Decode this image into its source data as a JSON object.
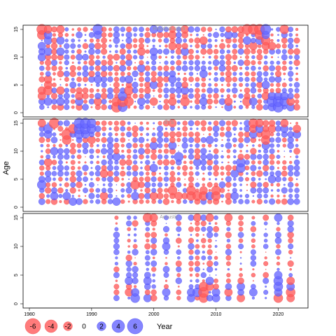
{
  "chart_data": {
    "type": "scatter",
    "subtype": "bubble-residuals",
    "ylabel": "Age",
    "xlabel": "Year",
    "xlim": [
      1980,
      2024
    ],
    "ylim": [
      0,
      15
    ],
    "x_ticks": [
      1980,
      1990,
      2000,
      2010,
      2020
    ],
    "y_ticks": [
      0,
      5,
      10,
      15
    ],
    "colors": {
      "positive": "#6666ff",
      "negative": "#ff5a5a"
    },
    "panels": [
      {
        "title": "Residual catch",
        "year_range": [
          1982,
          2023
        ],
        "points": [
          {
            "x": 1982,
            "y": 15,
            "v": -5
          },
          {
            "x": 1982,
            "y": 14,
            "v": -4
          },
          {
            "x": 1982,
            "y": 12,
            "v": 3
          },
          {
            "x": 1982,
            "y": 11,
            "v": 2
          },
          {
            "x": 1982,
            "y": 10,
            "v": 3
          },
          {
            "x": 1982,
            "y": 4,
            "v": -3
          },
          {
            "x": 1982,
            "y": 3,
            "v": -3
          },
          {
            "x": 1982,
            "y": 2,
            "v": 2
          },
          {
            "x": 1983,
            "y": 15,
            "v": -3
          },
          {
            "x": 1983,
            "y": 14,
            "v": 3
          },
          {
            "x": 1983,
            "y": 13,
            "v": 3
          },
          {
            "x": 1983,
            "y": 11,
            "v": 3
          },
          {
            "x": 1983,
            "y": 6,
            "v": -3
          },
          {
            "x": 1983,
            "y": 5,
            "v": -3
          },
          {
            "x": 1983,
            "y": 4,
            "v": -4
          },
          {
            "x": 1983,
            "y": 2,
            "v": 3
          },
          {
            "x": 1985,
            "y": 15,
            "v": -3
          },
          {
            "x": 1985,
            "y": 13,
            "v": 3
          },
          {
            "x": 1985,
            "y": 11,
            "v": 3
          },
          {
            "x": 1985,
            "y": 7,
            "v": -2
          },
          {
            "x": 1985,
            "y": 4,
            "v": -3
          },
          {
            "x": 1985,
            "y": 2,
            "v": 3
          },
          {
            "x": 1985,
            "y": 1,
            "v": -2
          },
          {
            "x": 1988,
            "y": 14,
            "v": 2
          },
          {
            "x": 1988,
            "y": 10,
            "v": 2
          },
          {
            "x": 1988,
            "y": 3,
            "v": -3
          },
          {
            "x": 1988,
            "y": 2,
            "v": 3
          },
          {
            "x": 1988,
            "y": 1,
            "v": -2
          },
          {
            "x": 1991,
            "y": 15,
            "v": 5
          },
          {
            "x": 1991,
            "y": 14,
            "v": 3
          },
          {
            "x": 1991,
            "y": 12,
            "v": -2
          },
          {
            "x": 1991,
            "y": 6,
            "v": 3
          },
          {
            "x": 1991,
            "y": 2,
            "v": -3
          },
          {
            "x": 1994,
            "y": 13,
            "v": 2
          },
          {
            "x": 1994,
            "y": 10,
            "v": -2
          },
          {
            "x": 1994,
            "y": 2,
            "v": -4
          },
          {
            "x": 1994,
            "y": 1,
            "v": -5
          },
          {
            "x": 1995,
            "y": 3,
            "v": 4
          },
          {
            "x": 1995,
            "y": 2,
            "v": -5
          },
          {
            "x": 1995,
            "y": 1,
            "v": 4
          },
          {
            "x": 1996,
            "y": 6,
            "v": 3
          },
          {
            "x": 1996,
            "y": 4,
            "v": -4
          },
          {
            "x": 1996,
            "y": 2,
            "v": -4
          },
          {
            "x": 1998,
            "y": 11,
            "v": -3
          },
          {
            "x": 1998,
            "y": 8,
            "v": 3
          },
          {
            "x": 1998,
            "y": 2,
            "v": 3
          },
          {
            "x": 2000,
            "y": 15,
            "v": 3
          },
          {
            "x": 2000,
            "y": 11,
            "v": 3
          },
          {
            "x": 2000,
            "y": 5,
            "v": 3
          },
          {
            "x": 2000,
            "y": 2,
            "v": -3
          },
          {
            "x": 2003,
            "y": 14,
            "v": -3
          },
          {
            "x": 2003,
            "y": 12,
            "v": -3
          },
          {
            "x": 2003,
            "y": 6,
            "v": 3
          },
          {
            "x": 2003,
            "y": 2,
            "v": -3
          },
          {
            "x": 2005,
            "y": 15,
            "v": -3
          },
          {
            "x": 2005,
            "y": 11,
            "v": 3
          },
          {
            "x": 2005,
            "y": 4,
            "v": 3
          },
          {
            "x": 2005,
            "y": 2,
            "v": -4
          },
          {
            "x": 2008,
            "y": 13,
            "v": -3
          },
          {
            "x": 2008,
            "y": 7,
            "v": 3
          },
          {
            "x": 2008,
            "y": 2,
            "v": 3
          },
          {
            "x": 2012,
            "y": 14,
            "v": 3
          },
          {
            "x": 2012,
            "y": 2,
            "v": -3
          },
          {
            "x": 2012,
            "y": 1,
            "v": 3
          },
          {
            "x": 2015,
            "y": 15,
            "v": -5
          },
          {
            "x": 2015,
            "y": 13,
            "v": 3
          },
          {
            "x": 2015,
            "y": 2,
            "v": -4
          },
          {
            "x": 2016,
            "y": 15,
            "v": -5
          },
          {
            "x": 2016,
            "y": 12,
            "v": -3
          },
          {
            "x": 2016,
            "y": 2,
            "v": 3
          },
          {
            "x": 2017,
            "y": 15,
            "v": -5
          },
          {
            "x": 2017,
            "y": 14,
            "v": -4
          },
          {
            "x": 2017,
            "y": 13,
            "v": 3
          },
          {
            "x": 2018,
            "y": 15,
            "v": 5
          },
          {
            "x": 2018,
            "y": 14,
            "v": 3
          },
          {
            "x": 2018,
            "y": 13,
            "v": -4
          },
          {
            "x": 2018,
            "y": 12,
            "v": -3
          },
          {
            "x": 2018,
            "y": 5,
            "v": 3
          },
          {
            "x": 2018,
            "y": 3,
            "v": -3
          },
          {
            "x": 2019,
            "y": 12,
            "v": -3
          },
          {
            "x": 2019,
            "y": 3,
            "v": 3
          },
          {
            "x": 2019,
            "y": 2,
            "v": 5
          },
          {
            "x": 2019,
            "y": 1,
            "v": 3
          },
          {
            "x": 2020,
            "y": 3,
            "v": 3
          },
          {
            "x": 2020,
            "y": 2,
            "v": 5
          },
          {
            "x": 2020,
            "y": 1,
            "v": 5
          },
          {
            "x": 2021,
            "y": 15,
            "v": -4
          },
          {
            "x": 2021,
            "y": 3,
            "v": 3
          },
          {
            "x": 2021,
            "y": 2,
            "v": 4
          },
          {
            "x": 2022,
            "y": 2,
            "v": -3
          },
          {
            "x": 2022,
            "y": 1,
            "v": 3
          }
        ]
      },
      {
        "title": "BTS",
        "year_range": [
          1982,
          2023
        ],
        "points": [
          {
            "x": 1982,
            "y": 15,
            "v": -3
          },
          {
            "x": 1982,
            "y": 4,
            "v": 4
          },
          {
            "x": 1982,
            "y": 1,
            "v": 2
          },
          {
            "x": 1983,
            "y": 14,
            "v": 4
          },
          {
            "x": 1983,
            "y": 13,
            "v": 3
          },
          {
            "x": 1983,
            "y": 8,
            "v": -3
          },
          {
            "x": 1984,
            "y": 15,
            "v": -5
          },
          {
            "x": 1984,
            "y": 10,
            "v": 3
          },
          {
            "x": 1984,
            "y": 2,
            "v": 3
          },
          {
            "x": 1986,
            "y": 13,
            "v": -5
          },
          {
            "x": 1986,
            "y": 12,
            "v": -4
          },
          {
            "x": 1986,
            "y": 2,
            "v": 3
          },
          {
            "x": 1987,
            "y": 14,
            "v": -4
          },
          {
            "x": 1987,
            "y": 1,
            "v": 3
          },
          {
            "x": 1988,
            "y": 15,
            "v": 5
          },
          {
            "x": 1988,
            "y": 14,
            "v": 5
          },
          {
            "x": 1988,
            "y": 13,
            "v": 4
          },
          {
            "x": 1989,
            "y": 15,
            "v": 5
          },
          {
            "x": 1989,
            "y": 14,
            "v": 5
          },
          {
            "x": 1989,
            "y": 13,
            "v": 3
          },
          {
            "x": 1990,
            "y": 15,
            "v": 4
          },
          {
            "x": 1990,
            "y": 14,
            "v": 4
          },
          {
            "x": 1990,
            "y": 12,
            "v": -3
          },
          {
            "x": 1992,
            "y": 6,
            "v": -3
          },
          {
            "x": 1992,
            "y": 2,
            "v": -3
          },
          {
            "x": 1994,
            "y": 9,
            "v": 3
          },
          {
            "x": 1994,
            "y": 1,
            "v": 3
          },
          {
            "x": 1997,
            "y": 4,
            "v": -4
          },
          {
            "x": 1997,
            "y": 2,
            "v": 3
          },
          {
            "x": 2000,
            "y": 11,
            "v": 3
          },
          {
            "x": 2000,
            "y": 7,
            "v": 3
          },
          {
            "x": 2000,
            "y": 2,
            "v": -3
          },
          {
            "x": 2003,
            "y": 15,
            "v": -3
          },
          {
            "x": 2003,
            "y": 11,
            "v": 3
          },
          {
            "x": 2003,
            "y": 3,
            "v": -4
          },
          {
            "x": 2004,
            "y": 9,
            "v": 4
          },
          {
            "x": 2004,
            "y": 2,
            "v": -3
          },
          {
            "x": 2006,
            "y": 3,
            "v": -4
          },
          {
            "x": 2006,
            "y": 2,
            "v": -4
          },
          {
            "x": 2007,
            "y": 2,
            "v": -4
          },
          {
            "x": 2007,
            "y": 8,
            "v": 3
          },
          {
            "x": 2008,
            "y": 3,
            "v": -3
          },
          {
            "x": 2008,
            "y": 2,
            "v": -4
          },
          {
            "x": 2009,
            "y": 2,
            "v": 3
          },
          {
            "x": 2009,
            "y": 12,
            "v": 3
          },
          {
            "x": 2010,
            "y": 3,
            "v": -4
          },
          {
            "x": 2010,
            "y": 2,
            "v": -4
          },
          {
            "x": 2013,
            "y": 6,
            "v": 3
          },
          {
            "x": 2013,
            "y": 2,
            "v": 3
          },
          {
            "x": 2014,
            "y": 8,
            "v": 4
          },
          {
            "x": 2014,
            "y": 7,
            "v": 4
          },
          {
            "x": 2016,
            "y": 15,
            "v": -4
          },
          {
            "x": 2016,
            "y": 14,
            "v": -3
          },
          {
            "x": 2016,
            "y": 13,
            "v": 3
          },
          {
            "x": 2017,
            "y": 15,
            "v": -3
          },
          {
            "x": 2017,
            "y": 14,
            "v": 3
          },
          {
            "x": 2018,
            "y": 13,
            "v": -4
          },
          {
            "x": 2018,
            "y": 12,
            "v": -4
          },
          {
            "x": 2018,
            "y": 11,
            "v": 3
          },
          {
            "x": 2019,
            "y": 14,
            "v": -3
          },
          {
            "x": 2019,
            "y": 5,
            "v": 3
          },
          {
            "x": 2021,
            "y": 15,
            "v": -3
          },
          {
            "x": 2021,
            "y": 14,
            "v": 3
          },
          {
            "x": 2023,
            "y": 14,
            "v": -3
          },
          {
            "x": 2023,
            "y": 13,
            "v": 3
          }
        ]
      },
      {
        "title": "Acoustic",
        "year_range": [
          1994,
          2022
        ],
        "years": [
          1994,
          1996,
          1997,
          1999,
          2000,
          2002,
          2004,
          2006,
          2007,
          2008,
          2009,
          2010,
          2012,
          2014,
          2016,
          2018,
          2020,
          2022
        ],
        "points": [
          {
            "x": 1996,
            "y": 4,
            "v": 3
          },
          {
            "x": 1996,
            "y": 2,
            "v": -3
          },
          {
            "x": 1997,
            "y": 2,
            "v": 3
          },
          {
            "x": 1997,
            "y": 1,
            "v": 4
          },
          {
            "x": 1999,
            "y": 15,
            "v": -4
          },
          {
            "x": 1999,
            "y": 4,
            "v": 3
          },
          {
            "x": 1999,
            "y": 1,
            "v": 3
          },
          {
            "x": 2000,
            "y": 15,
            "v": -3
          },
          {
            "x": 2002,
            "y": 10,
            "v": 3
          },
          {
            "x": 2002,
            "y": 2,
            "v": 3
          },
          {
            "x": 2006,
            "y": 2,
            "v": 3
          },
          {
            "x": 2006,
            "y": 1,
            "v": 3
          },
          {
            "x": 2007,
            "y": 15,
            "v": -3
          },
          {
            "x": 2007,
            "y": 2,
            "v": 4
          },
          {
            "x": 2008,
            "y": 3,
            "v": -4
          },
          {
            "x": 2008,
            "y": 2,
            "v": -5
          },
          {
            "x": 2008,
            "y": 1,
            "v": -4
          },
          {
            "x": 2009,
            "y": 15,
            "v": -3
          },
          {
            "x": 2009,
            "y": 4,
            "v": 3
          },
          {
            "x": 2009,
            "y": 3,
            "v": -3
          },
          {
            "x": 2010,
            "y": 2,
            "v": 3
          },
          {
            "x": 2010,
            "y": 1,
            "v": 3
          },
          {
            "x": 2012,
            "y": 15,
            "v": -3
          },
          {
            "x": 2012,
            "y": 2,
            "v": -3
          },
          {
            "x": 2014,
            "y": 3,
            "v": 3
          },
          {
            "x": 2014,
            "y": 1,
            "v": -3
          },
          {
            "x": 2016,
            "y": 2,
            "v": 3
          },
          {
            "x": 2020,
            "y": 15,
            "v": 3
          },
          {
            "x": 2020,
            "y": 5,
            "v": 3
          },
          {
            "x": 2020,
            "y": 4,
            "v": 4
          },
          {
            "x": 2020,
            "y": 3,
            "v": 4
          },
          {
            "x": 2020,
            "y": 2,
            "v": 3
          },
          {
            "x": 2020,
            "y": 1,
            "v": -4
          },
          {
            "x": 2022,
            "y": 4,
            "v": -3
          },
          {
            "x": 2022,
            "y": 3,
            "v": 3
          },
          {
            "x": 2022,
            "y": 2,
            "v": -4
          },
          {
            "x": 2022,
            "y": 1,
            "v": -3
          }
        ]
      }
    ],
    "legend": {
      "entries": [
        {
          "label": "-6",
          "value": -6
        },
        {
          "label": "-4",
          "value": -4
        },
        {
          "label": "-2",
          "value": -2
        },
        {
          "label": "0",
          "value": 0
        },
        {
          "label": "2",
          "value": 2
        },
        {
          "label": "4",
          "value": 4
        },
        {
          "label": "6",
          "value": 6
        }
      ],
      "placement": "bottom-left"
    },
    "grid": false
  }
}
